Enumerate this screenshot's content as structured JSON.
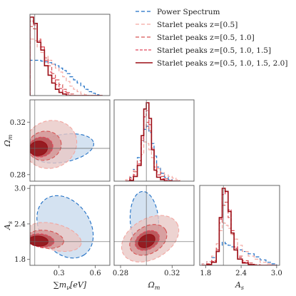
{
  "chart_data": {
    "type": "corner",
    "parameters": [
      {
        "key": "mnu",
        "label_main": "∑m",
        "label_sub": "ν",
        "label_unit": "[eV]",
        "ticks": [
          "0.3",
          "0.6"
        ],
        "tick_values": [
          0.3,
          0.6
        ],
        "range": [
          0.06,
          0.72
        ],
        "fiducial": 0.1
      },
      {
        "key": "omega_m",
        "label_main": "Ω",
        "label_sub": "m",
        "label_unit": "",
        "ticks": [
          "0.28",
          "0.32"
        ],
        "tick_values": [
          0.28,
          0.32
        ],
        "range": [
          0.275,
          0.337
        ],
        "fiducial": 0.3
      },
      {
        "key": "as",
        "label_main": "A",
        "label_sub": "s",
        "label_unit": "",
        "ticks": [
          "1.8",
          "2.4",
          "3.0"
        ],
        "tick_values": [
          1.8,
          2.4,
          3.0
        ],
        "range": [
          1.7,
          3.05
        ],
        "fiducial": 2.1
      }
    ],
    "legend": [
      {
        "name": "Power Spectrum",
        "color": "#1f6fc5",
        "dash": "5,3",
        "width": 1.2
      },
      {
        "name": "Starlet peaks z=[0.5]",
        "color": "#f3a6a0",
        "dash": "5,3",
        "width": 1.2
      },
      {
        "name": "Starlet peaks z=[0.5, 1.0]",
        "color": "#d65454",
        "dash": "5,3",
        "width": 1.2
      },
      {
        "name": "Starlet peaks z=[0.5, 1.0, 1.5]",
        "color": "#e0465a",
        "dash": "4,2",
        "width": 1.3
      },
      {
        "name": "Starlet peaks z=[0.5, 1.0, 1.5, 2.0]",
        "color": "#9b0d15",
        "dash": "",
        "width": 1.6
      }
    ],
    "histograms": {
      "mnu": {
        "bins": [
          0.06,
          0.09,
          0.12,
          0.15,
          0.18,
          0.21,
          0.24,
          0.27,
          0.3,
          0.33,
          0.36,
          0.39,
          0.42,
          0.45,
          0.48,
          0.51,
          0.54,
          0.57,
          0.6,
          0.63,
          0.66
        ],
        "series": [
          [
            0.45,
            0.45,
            0.45,
            0.44,
            0.43,
            0.42,
            0.4,
            0.38,
            0.35,
            0.32,
            0.28,
            0.24,
            0.2,
            0.16,
            0.12,
            0.08,
            0.05,
            0.03,
            0.01,
            0.0
          ],
          [
            0.72,
            0.7,
            0.62,
            0.55,
            0.5,
            0.45,
            0.4,
            0.35,
            0.3,
            0.24,
            0.18,
            0.12,
            0.08,
            0.05,
            0.02,
            0.01,
            0.0,
            0.0,
            0.0,
            0.0
          ],
          [
            0.88,
            0.85,
            0.72,
            0.62,
            0.48,
            0.38,
            0.28,
            0.2,
            0.14,
            0.08,
            0.04,
            0.02,
            0.0,
            0.0,
            0.0,
            0.0,
            0.0,
            0.0,
            0.0,
            0.0
          ],
          [
            0.95,
            0.9,
            0.7,
            0.62,
            0.45,
            0.3,
            0.22,
            0.14,
            0.09,
            0.05,
            0.02,
            0.0,
            0.0,
            0.0,
            0.0,
            0.0,
            0.0,
            0.0,
            0.0,
            0.0
          ],
          [
            1.0,
            0.92,
            0.68,
            0.58,
            0.38,
            0.26,
            0.16,
            0.08,
            0.04,
            0.02,
            0.0,
            0.0,
            0.0,
            0.0,
            0.0,
            0.0,
            0.0,
            0.0,
            0.0,
            0.0
          ]
        ]
      },
      "omega_m": {
        "bins": [
          0.284,
          0.287,
          0.29,
          0.293,
          0.296,
          0.298,
          0.3,
          0.302,
          0.304,
          0.306,
          0.308,
          0.311,
          0.314,
          0.317,
          0.32,
          0.323,
          0.326
        ],
        "series": [
          [
            0.0,
            0.05,
            0.15,
            0.3,
            0.5,
            0.66,
            0.7,
            0.62,
            0.48,
            0.32,
            0.18,
            0.1,
            0.05,
            0.02,
            0.0,
            0.0
          ],
          [
            0.02,
            0.06,
            0.14,
            0.22,
            0.34,
            0.5,
            0.48,
            0.4,
            0.3,
            0.22,
            0.16,
            0.11,
            0.08,
            0.06,
            0.04,
            0.02
          ],
          [
            0.0,
            0.04,
            0.12,
            0.26,
            0.52,
            0.68,
            0.75,
            0.64,
            0.4,
            0.22,
            0.12,
            0.06,
            0.03,
            0.01,
            0.0,
            0.0
          ],
          [
            0.0,
            0.02,
            0.08,
            0.22,
            0.55,
            0.82,
            0.9,
            0.72,
            0.42,
            0.18,
            0.08,
            0.03,
            0.01,
            0.0,
            0.0,
            0.0
          ],
          [
            0.0,
            0.01,
            0.06,
            0.2,
            0.58,
            0.92,
            1.0,
            0.8,
            0.4,
            0.14,
            0.05,
            0.02,
            0.0,
            0.0,
            0.0,
            0.0
          ]
        ]
      },
      "as": {
        "bins": [
          1.74,
          1.82,
          1.9,
          1.98,
          2.03,
          2.08,
          2.13,
          2.18,
          2.23,
          2.28,
          2.34,
          2.42,
          2.52,
          2.62,
          2.72,
          2.82,
          2.92,
          3.0
        ],
        "series": [
          [
            0.02,
            0.05,
            0.1,
            0.18,
            0.26,
            0.3,
            0.28,
            0.26,
            0.24,
            0.22,
            0.2,
            0.18,
            0.15,
            0.11,
            0.07,
            0.04,
            0.02
          ],
          [
            0.02,
            0.05,
            0.12,
            0.28,
            0.45,
            0.55,
            0.52,
            0.48,
            0.4,
            0.34,
            0.26,
            0.18,
            0.12,
            0.08,
            0.04,
            0.02,
            0.0
          ],
          [
            0.0,
            0.02,
            0.06,
            0.22,
            0.55,
            0.78,
            0.82,
            0.62,
            0.4,
            0.22,
            0.12,
            0.06,
            0.03,
            0.01,
            0.0,
            0.0,
            0.0
          ],
          [
            0.0,
            0.01,
            0.05,
            0.2,
            0.6,
            0.92,
            0.95,
            0.72,
            0.45,
            0.24,
            0.1,
            0.04,
            0.01,
            0.0,
            0.0,
            0.0,
            0.0
          ],
          [
            0.0,
            0.01,
            0.04,
            0.18,
            0.62,
            1.0,
            0.96,
            0.7,
            0.42,
            0.2,
            0.08,
            0.03,
            0.01,
            0.0,
            0.0,
            0.0,
            0.0
          ]
        ]
      }
    },
    "contours": {
      "mnu_omega_m": [
        {
          "series": 0,
          "center": [
            0.33,
            0.3
          ],
          "radius": [
            0.26,
            0.0105
          ],
          "angle_deg": 10
        },
        {
          "series": 1,
          "center": [
            0.23,
            0.303
          ],
          "radius": [
            0.22,
            0.018
          ],
          "angle_deg": 22
        },
        {
          "series": 2,
          "center": [
            0.18,
            0.302
          ],
          "radius": [
            0.14,
            0.011
          ],
          "angle_deg": 15
        },
        {
          "series": 3,
          "center": [
            0.15,
            0.301
          ],
          "radius": [
            0.1,
            0.0075
          ],
          "angle_deg": 12
        },
        {
          "series": 4,
          "center": [
            0.13,
            0.3
          ],
          "radius": [
            0.075,
            0.0055
          ],
          "angle_deg": 10
        }
      ],
      "mnu_as": [
        {
          "series": 0,
          "center": [
            0.35,
            2.35
          ],
          "radius": [
            0.28,
            0.42
          ],
          "angle_deg": -55
        },
        {
          "series": 1,
          "center": [
            0.26,
            2.18
          ],
          "radius": [
            0.23,
            0.22
          ],
          "angle_deg": -15
        },
        {
          "series": 2,
          "center": [
            0.19,
            2.14
          ],
          "radius": [
            0.15,
            0.15
          ],
          "angle_deg": -8
        },
        {
          "series": 3,
          "center": [
            0.15,
            2.12
          ],
          "radius": [
            0.11,
            0.11
          ],
          "angle_deg": -6
        },
        {
          "series": 4,
          "center": [
            0.13,
            2.11
          ],
          "radius": [
            0.08,
            0.085
          ],
          "angle_deg": -4
        }
      ],
      "omega_m_as": [
        {
          "series": 0,
          "center": [
            0.2985,
            2.45
          ],
          "radius": [
            0.011,
            0.5
          ],
          "angle_deg": 4
        },
        {
          "series": 1,
          "center": [
            0.303,
            2.15
          ],
          "radius": [
            0.024,
            0.34
          ],
          "angle_deg": 30
        },
        {
          "series": 2,
          "center": [
            0.3015,
            2.13
          ],
          "radius": [
            0.0155,
            0.23
          ],
          "angle_deg": 30
        },
        {
          "series": 3,
          "center": [
            0.3007,
            2.12
          ],
          "radius": [
            0.01,
            0.15
          ],
          "angle_deg": 28
        },
        {
          "series": 4,
          "center": [
            0.3003,
            2.11
          ],
          "radius": [
            0.0068,
            0.1
          ],
          "angle_deg": 28
        }
      ]
    },
    "fill_colors": [
      "#c6d8ec",
      "#e9c8c6",
      "#d29493",
      "#b44a4d",
      "#8c0c12"
    ],
    "grid": false,
    "legend_position": "top-right"
  }
}
